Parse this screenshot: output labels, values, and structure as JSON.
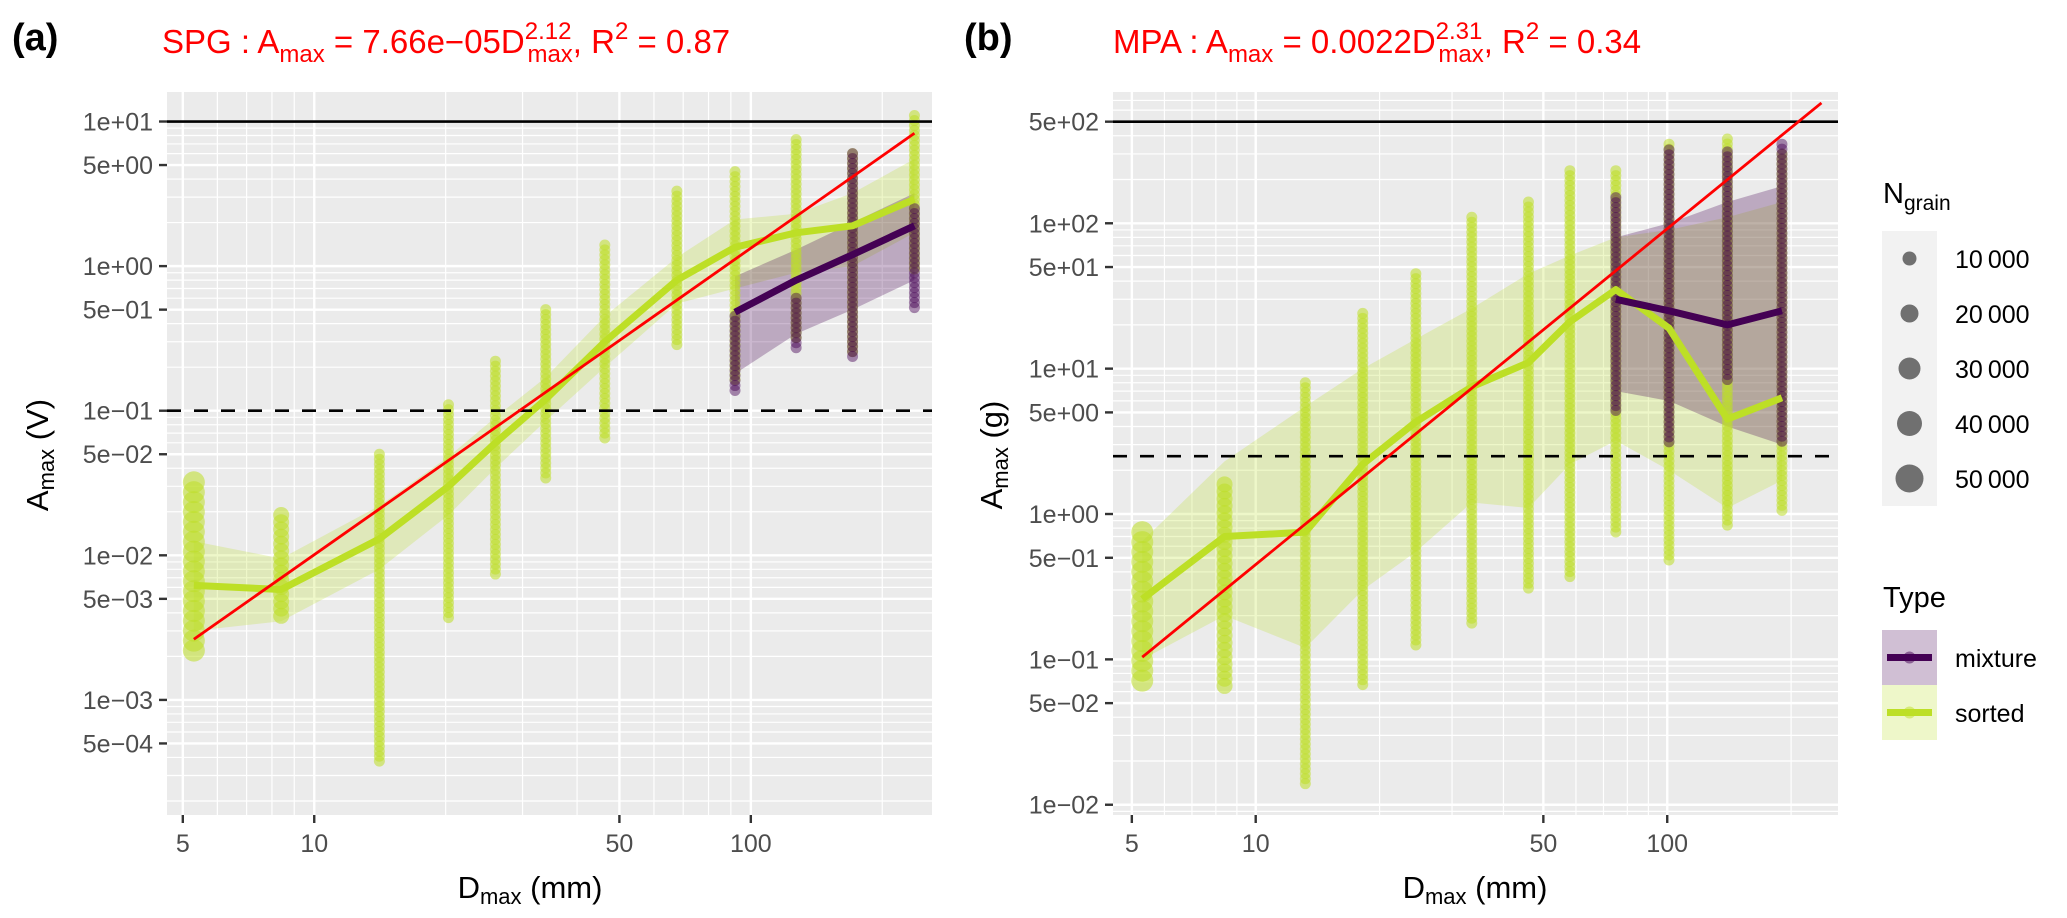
{
  "chart_data": [
    {
      "panel": "(a)",
      "type": "scatter",
      "title": "SPG : A_max = 7.66e-05 D_max^2.12, R^2 = 0.87",
      "equation": {
        "prefix": "SPG :  A",
        "sub1": "max",
        "mid": " = 7.66e−05D",
        "sup": "2.12",
        "sub2": "max",
        "suffix": ", R",
        "r2sup": "2",
        "r2": " = 0.87"
      },
      "fit": {
        "coef": 7.66e-05,
        "exponent": 2.12,
        "r2": 0.87
      },
      "xlabel": {
        "main": "D",
        "sub": "max",
        "rest": " (mm)"
      },
      "ylabel": {
        "main": "A",
        "sub": "max",
        "rest": " (V)"
      },
      "x_scale": "log10",
      "y_scale": "log10",
      "xlim": [
        4.6,
        260
      ],
      "ylim": [
        0.00016,
        16
      ],
      "x_ticks": [
        {
          "v": 5,
          "label": "5"
        },
        {
          "v": 10,
          "label": "10"
        },
        {
          "v": 50,
          "label": "50"
        },
        {
          "v": 100,
          "label": "100"
        }
      ],
      "y_ticks": [
        {
          "v": 10,
          "label": "1e+01"
        },
        {
          "v": 5,
          "label": "5e+00"
        },
        {
          "v": 1,
          "label": "1e+00"
        },
        {
          "v": 0.5,
          "label": "5e−01"
        },
        {
          "v": 0.1,
          "label": "1e−01"
        },
        {
          "v": 0.05,
          "label": "5e−02"
        },
        {
          "v": 0.01,
          "label": "1e−02"
        },
        {
          "v": 0.005,
          "label": "5e−03"
        },
        {
          "v": 0.001,
          "label": "1e−03"
        },
        {
          "v": 0.0005,
          "label": "5e−04"
        }
      ],
      "hlines": [
        {
          "v": 10,
          "style": "solid"
        },
        {
          "v": 0.1,
          "style": "dashed"
        }
      ],
      "fit_line": {
        "x": [
          5.3,
          237
        ],
        "color": "#ff0000"
      },
      "columns": [
        {
          "type": "sorted",
          "x": 5.3,
          "ymin": 0.0021,
          "ymax": 0.032,
          "size": "large"
        },
        {
          "type": "sorted",
          "x": 8.4,
          "ymin": 0.0038,
          "ymax": 0.019,
          "size": "medium"
        },
        {
          "type": "sorted",
          "x": 14.1,
          "ymin": 0.00035,
          "ymax": 0.05,
          "size": "small"
        },
        {
          "type": "sorted",
          "x": 20.3,
          "ymin": 0.0035,
          "ymax": 0.11,
          "size": "small"
        },
        {
          "type": "sorted",
          "x": 26,
          "ymin": 0.007,
          "ymax": 0.22,
          "size": "small"
        },
        {
          "type": "sorted",
          "x": 33.9,
          "ymin": 0.033,
          "ymax": 0.5,
          "size": "small"
        },
        {
          "type": "sorted",
          "x": 46.3,
          "ymin": 0.06,
          "ymax": 1.4,
          "size": "small"
        },
        {
          "type": "sorted",
          "x": 67.7,
          "ymin": 0.28,
          "ymax": 3.3,
          "size": "small"
        },
        {
          "type": "sorted",
          "x": 92,
          "ymin": 0.16,
          "ymax": 4.5,
          "size": "small"
        },
        {
          "type": "mixture",
          "x": 92,
          "ymin": 0.13,
          "ymax": 0.45,
          "size": "small"
        },
        {
          "type": "sorted",
          "x": 127,
          "ymin": 0.3,
          "ymax": 7.5,
          "size": "small"
        },
        {
          "type": "mixture",
          "x": 127,
          "ymin": 0.26,
          "ymax": 0.6,
          "size": "small"
        },
        {
          "type": "sorted",
          "x": 171,
          "ymin": 0.25,
          "ymax": 6.0,
          "size": "small"
        },
        {
          "type": "mixture",
          "x": 171,
          "ymin": 0.22,
          "ymax": 6.0,
          "size": "small"
        },
        {
          "type": "sorted",
          "x": 237,
          "ymin": 0.9,
          "ymax": 11,
          "size": "small"
        },
        {
          "type": "mixture",
          "x": 237,
          "ymin": 0.48,
          "ymax": 2.5,
          "size": "small"
        }
      ],
      "series": [
        {
          "name": "sorted",
          "x": [
            5.3,
            8.4,
            14.1,
            20.3,
            26,
            33.9,
            46.3,
            67.7,
            92,
            127,
            171,
            237
          ],
          "y": [
            0.0062,
            0.0058,
            0.013,
            0.03,
            0.06,
            0.12,
            0.3,
            0.8,
            1.35,
            1.7,
            1.9,
            2.9
          ],
          "band_lo": [
            0.003,
            0.0035,
            0.008,
            0.019,
            0.04,
            0.085,
            0.2,
            0.55,
            0.7,
            0.9,
            1.0,
            1.7
          ],
          "band_hi": [
            0.0125,
            0.0095,
            0.022,
            0.048,
            0.09,
            0.17,
            0.45,
            1.15,
            2.1,
            2.3,
            3.2,
            5.5
          ]
        },
        {
          "name": "mixture",
          "x": [
            92,
            127,
            171,
            237
          ],
          "y": [
            0.48,
            0.8,
            1.2,
            1.9
          ],
          "band_lo": [
            0.18,
            0.34,
            0.5,
            0.8
          ],
          "band_hi": [
            0.85,
            1.3,
            2.0,
            3.2
          ]
        }
      ]
    },
    {
      "panel": "(b)",
      "type": "scatter",
      "title": "MPA : A_max = 0.0022 D_max^2.31, R^2 = 0.34",
      "equation": {
        "prefix": "MPA :  A",
        "sub1": "max",
        "mid": " = 0.0022D",
        "sup": "2.31",
        "sub2": "max",
        "suffix": ", R",
        "r2sup": "2",
        "r2": " = 0.34"
      },
      "fit": {
        "coef": 0.0022,
        "exponent": 2.31,
        "r2": 0.34
      },
      "xlabel": {
        "main": "D",
        "sub": "max",
        "rest": " (mm)"
      },
      "ylabel": {
        "main": "A",
        "sub": "max",
        "rest": " (g)"
      },
      "x_scale": "log10",
      "y_scale": "log10",
      "xlim": [
        4.5,
        260
      ],
      "ylim": [
        0.0085,
        800
      ],
      "x_ticks": [
        {
          "v": 5,
          "label": "5"
        },
        {
          "v": 10,
          "label": "10"
        },
        {
          "v": 50,
          "label": "50"
        },
        {
          "v": 100,
          "label": "100"
        }
      ],
      "y_ticks": [
        {
          "v": 500,
          "label": "5e+02"
        },
        {
          "v": 100,
          "label": "1e+02"
        },
        {
          "v": 50,
          "label": "5e+01"
        },
        {
          "v": 10,
          "label": "1e+01"
        },
        {
          "v": 5,
          "label": "5e+00"
        },
        {
          "v": 1,
          "label": "1e+00"
        },
        {
          "v": 0.5,
          "label": "5e−01"
        },
        {
          "v": 0.1,
          "label": "1e−01"
        },
        {
          "v": 0.05,
          "label": "5e−02"
        },
        {
          "v": 0.01,
          "label": "1e−02"
        }
      ],
      "hlines": [
        {
          "v": 500,
          "style": "solid"
        },
        {
          "v": 2.5,
          "style": "dashed"
        }
      ],
      "fit_line": {
        "x": [
          5.3,
          237
        ],
        "color": "#ff0000"
      },
      "columns": [
        {
          "type": "sorted",
          "x": 5.3,
          "ymin": 0.065,
          "ymax": 0.75,
          "size": "large"
        },
        {
          "type": "sorted",
          "x": 8.4,
          "ymin": 0.065,
          "ymax": 1.6,
          "size": "medium"
        },
        {
          "type": "sorted",
          "x": 13.2,
          "ymin": 0.013,
          "ymax": 8,
          "size": "small"
        },
        {
          "type": "sorted",
          "x": 18.2,
          "ymin": 0.065,
          "ymax": 24,
          "size": "small"
        },
        {
          "type": "sorted",
          "x": 24.5,
          "ymin": 0.12,
          "ymax": 45,
          "size": "small"
        },
        {
          "type": "sorted",
          "x": 33.5,
          "ymin": 0.17,
          "ymax": 110,
          "size": "small"
        },
        {
          "type": "sorted",
          "x": 46,
          "ymin": 0.3,
          "ymax": 140,
          "size": "small"
        },
        {
          "type": "sorted",
          "x": 58,
          "ymin": 0.35,
          "ymax": 230,
          "size": "small"
        },
        {
          "type": "sorted",
          "x": 75,
          "ymin": 0.7,
          "ymax": 230,
          "size": "small"
        },
        {
          "type": "mixture",
          "x": 75,
          "ymin": 5,
          "ymax": 150,
          "size": "small"
        },
        {
          "type": "sorted",
          "x": 101,
          "ymin": 0.45,
          "ymax": 350,
          "size": "small"
        },
        {
          "type": "mixture",
          "x": 101,
          "ymin": 3,
          "ymax": 320,
          "size": "small"
        },
        {
          "type": "sorted",
          "x": 140,
          "ymin": 0.8,
          "ymax": 380,
          "size": "small"
        },
        {
          "type": "mixture",
          "x": 140,
          "ymin": 8,
          "ymax": 310,
          "size": "small"
        },
        {
          "type": "sorted",
          "x": 190,
          "ymin": 1.0,
          "ymax": 300,
          "size": "small"
        },
        {
          "type": "mixture",
          "x": 190,
          "ymin": 3,
          "ymax": 350,
          "size": "small"
        }
      ],
      "series": [
        {
          "name": "sorted",
          "x": [
            5.3,
            8.4,
            13.2,
            18.2,
            24.5,
            33.5,
            46,
            58,
            75,
            101,
            140,
            190
          ],
          "y": [
            0.26,
            0.7,
            0.75,
            2.2,
            4.3,
            7.5,
            11,
            21,
            35,
            19,
            4.5,
            6.3
          ],
          "band_lo": [
            0.1,
            0.2,
            0.12,
            0.3,
            0.55,
            1.2,
            1.1,
            2.2,
            3.2,
            2.0,
            1.1,
            1.7
          ],
          "band_hi": [
            0.65,
            2.3,
            5.5,
            10,
            16,
            26,
            45,
            60,
            80,
            90,
            110,
            140
          ]
        },
        {
          "name": "mixture",
          "x": [
            75,
            101,
            140,
            190
          ],
          "y": [
            30,
            25,
            20,
            25
          ],
          "band_lo": [
            7,
            6,
            4,
            3
          ],
          "band_hi": [
            80,
            100,
            140,
            180
          ]
        }
      ]
    }
  ],
  "legends": {
    "size": {
      "title_main": "N",
      "title_sub": "grain",
      "entries": [
        {
          "value": 10000,
          "label": "10 000"
        },
        {
          "value": 20000,
          "label": "20 000"
        },
        {
          "value": 30000,
          "label": "30 000"
        },
        {
          "value": 40000,
          "label": "40 000"
        },
        {
          "value": 50000,
          "label": "50 000"
        }
      ]
    },
    "type": {
      "title": "Type",
      "entries": [
        {
          "name": "mixture",
          "color": "#440154"
        },
        {
          "name": "sorted",
          "color": "#bddf26"
        }
      ]
    }
  },
  "colors": {
    "sorted": "#bddf26",
    "mixture": "#440154",
    "fit": "#ff0000",
    "panel_bg": "#ebebeb",
    "grid": "#ffffff",
    "legend_key_bg": "#f2f2f2"
  }
}
